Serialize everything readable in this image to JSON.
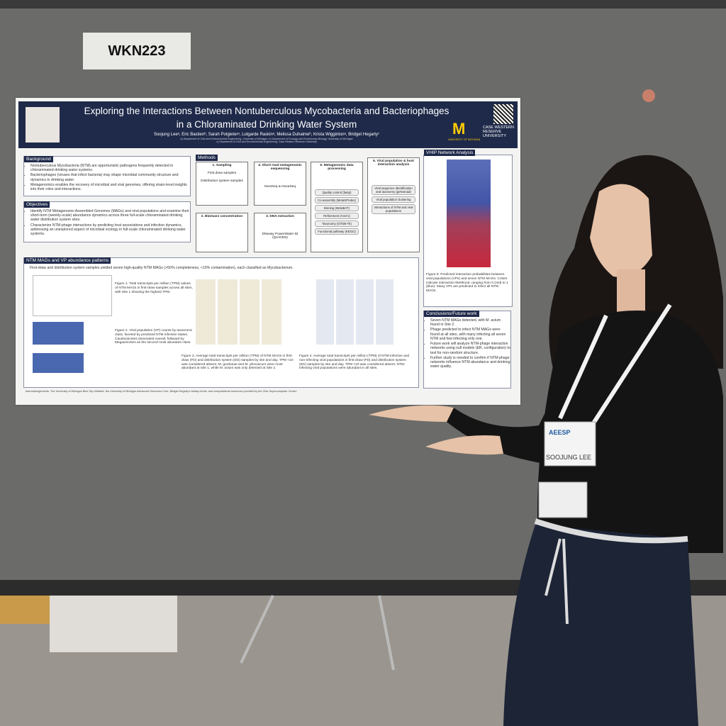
{
  "sign": "WKN223",
  "poster": {
    "title": [
      "Exploring the Interactions Between Nontuberculous Mycobacteria and Bacteriophages",
      "in a Chloraminated Drinking Water System"
    ],
    "authors": "Soojung Leeᵃ, Eric Bastienᵇ, Sarah Potgieterᵃ, Lutgarde Raskinᵃ, Melissa Duhaimeᵇ, Krista Wiggintonᵃ, Bridget Hegartyᶜ",
    "affiliations": [
      "a) Department of Civil and Environmental Engineering, University of Michigan, b) Department of Ecology and Evolutionary Biology, University of Michigan",
      "c) Department of Civil and Environmental Engineering, Case Western Reserve University"
    ],
    "logos": [
      "M",
      "UNIVERSITY OF MICHIGAN",
      "CASE WESTERN RESERVE UNIVERSITY"
    ],
    "background": {
      "heading": "Background",
      "items": [
        "Nontuberculous Mycobacteria (NTM) are opportunistic pathogens frequently detected in chloraminated drinking water systems.",
        "Bacteriophages (viruses that infect bacteria) may shape microbial community structure and dynamics in drinking water.",
        "Metagenomics enables the recovery of microbial and viral genomes, offering strain-level insights into their roles and interactions."
      ]
    },
    "objectives": {
      "heading": "Objectives",
      "items": [
        "Identify NTM Metagenome-Assembled Genomes (MAGs) and viral populations and examine their short-term (weekly-scale) abundance dynamics across three full-scale chloraminated drinking water distribution system sites.",
        "Characterize NTM-phage interactions by predicting host associations and infection dynamics, addressing an unexplored aspect of microbial ecology in full-scale chloraminated drinking water systems."
      ]
    },
    "methods": {
      "heading": "Methods",
      "steps": [
        "1. Sampling",
        "4. Short read metagenomic sequencing",
        "5. Metagenomic data processing",
        "6. Viral population & host interaction analysis",
        "2. Biomass concentration",
        "3. DNA extraction"
      ],
      "sampling": [
        "First draw samples",
        "Distribution system samples"
      ],
      "sequencing": "NextSeq & NovaSeq",
      "extraction": "DNeasy PowerWater kit (QIAGEN)",
      "processing": [
        "Quality control (fastp)",
        "Co-assembly (MetaSPAdes)",
        "Binning (MetaBAT)",
        "Refinement (Anvi'o)",
        "Taxonomy (GTDB-Tk)",
        "Functional pathway (KEGG)"
      ],
      "viral": [
        "Viral sequence identification and taxonomy (geNomad)",
        "Viral population clustering",
        "Interactions of NTM and viral populations"
      ]
    },
    "ntm": {
      "heading": "NTM MAGs and VP abundance patterns",
      "intro": "First-draw and distribution system samples yielded seven high-quality NTM MAGs (>50% completeness, <10% contamination), each classified as Mycobacterium.",
      "figures": [
        "Figure 1. Total transcripts per million (TPM) values of NTM MAGs in first-draw samples across all sites, with Site 1 showing the highest TPM.",
        "Figure 2. Viral population (VP) counts by taxonomic class, faceted by predicted NTM infection status. Caudoviricetes dominated overall, followed by Megaviricetes as the second most abundant class.",
        "Figure 3. Average total transcripts per million (TPM) of NTM MAGs in first-draw (FD) and distribution system (DS) samples by site and day. TPM <10 was considered absent. M. gordonae and M. phocaicum were most abundant at Site 1, while M. avium was only detected at Site 2.",
        "Figure 4. Average total transcripts per million (TPM) of NTM-infective and non-infecting viral populations in first-draw (FD) and distribution system (DS) samples by site and day. TPM <10 was considered absent. NTM-infecting viral populations were abundant in all sites."
      ]
    },
    "vhip": {
      "heading": "VHIP Network Analysis",
      "caption": "Figure 5. Predicted interaction probabilities between viral populations (VPs) and seven NTM MAGs. Colors indicate interaction likelihood, ranging from 0 (red) to 1 (blue). Many VPs are predicted to infect all NTM MAGs."
    },
    "conclusions": {
      "heading": "Conclusions/Future work",
      "items": [
        "Seven NTM MAGs detected, with M. avium found in Site 2.",
        "Phage predicted to infect NTM MAGs were found at all sites, with many infecting all seven NTM and few infecting only one.",
        "Future work will analyze NTM-phage interaction networks using null models (ER, configuration) to test for non-random structure.",
        "Further study is needed to confirm if NTM-phage networks influence NTM abundance and drinking water quality."
      ]
    },
    "acknowledgements": "Acknowledgements: The University of Michigan Blue Sky Initiative, the University of Michigan Advanced Genomics Core, Bridget Hegarty's startup funds, and computational resources provided by the Ohio Supercomputer Center."
  },
  "badge": {
    "event": "AEESP",
    "name": "SOOJUNG LEE"
  }
}
